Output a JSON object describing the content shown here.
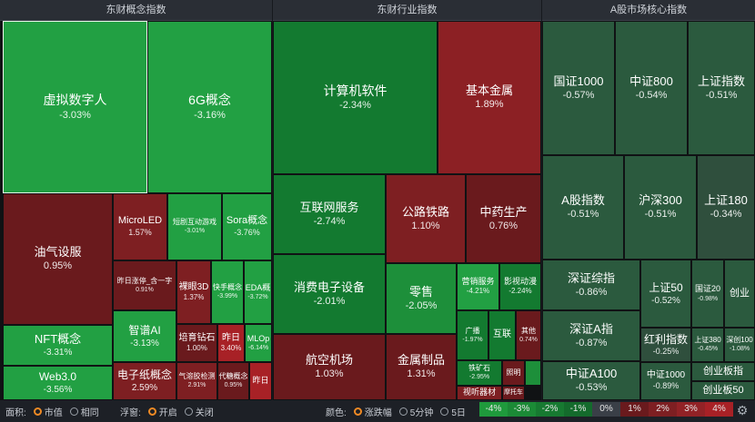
{
  "panels": [
    {
      "title": "东财概念指数"
    },
    {
      "title": "东财行业指数"
    },
    {
      "title": "A股市场核心指数"
    }
  ],
  "tiles": [
    {
      "name": "虚拟数字人",
      "value": "-3.03%"
    },
    {
      "name": "6G概念",
      "value": "-3.16%"
    },
    {
      "name": "油气设服",
      "value": "0.95%"
    },
    {
      "name": "MicroLED",
      "value": "1.57%"
    },
    {
      "name": "短剧互动游戏",
      "value": "-3.01%"
    },
    {
      "name": "Sora概念",
      "value": "-3.76%"
    },
    {
      "name": "昨日涨停_含一字",
      "value": "0.91%"
    },
    {
      "name": "裸眼3D",
      "value": "1.37%"
    },
    {
      "name": "快手概念",
      "value": "-3.99%"
    },
    {
      "name": "EDA概",
      "value": "-3.72%"
    },
    {
      "name": "智谱AI",
      "value": "-3.13%"
    },
    {
      "name": "培育钻石",
      "value": "1.00%"
    },
    {
      "name": "昨日",
      "value": "3.40%"
    },
    {
      "name": "MLOp",
      "value": "-6.14%"
    },
    {
      "name": "NFT概念",
      "value": "-3.31%"
    },
    {
      "name": "电子纸概念",
      "value": "2.59%"
    },
    {
      "name": "气溶胶检测",
      "value": "2.91%"
    },
    {
      "name": "代糖概念",
      "value": "0.95%"
    },
    {
      "name": "昨日",
      "value": ""
    },
    {
      "name": "Web3.0",
      "value": "-3.56%"
    },
    {
      "name": "计算机软件",
      "value": "-2.34%"
    },
    {
      "name": "基本金属",
      "value": "1.89%"
    },
    {
      "name": "互联网服务",
      "value": "-2.74%"
    },
    {
      "name": "公路铁路",
      "value": "1.10%"
    },
    {
      "name": "中药生产",
      "value": "0.76%"
    },
    {
      "name": "消费电子设备",
      "value": "-2.01%"
    },
    {
      "name": "零售",
      "value": "-2.05%"
    },
    {
      "name": "营销服务",
      "value": "-4.21%"
    },
    {
      "name": "影视动漫",
      "value": "-2.24%"
    },
    {
      "name": "广播",
      "value": "-1.97%"
    },
    {
      "name": "互联",
      "value": ""
    },
    {
      "name": "其他",
      "value": "0.74%"
    },
    {
      "name": "航空机场",
      "value": "1.03%"
    },
    {
      "name": "金属制品",
      "value": "1.31%"
    },
    {
      "name": "铁矿石",
      "value": "-2.95%"
    },
    {
      "name": "照明",
      "value": ""
    },
    {
      "name": "视听器材",
      "value": ""
    },
    {
      "name": "摩托车",
      "value": ""
    },
    {
      "name": "",
      "value": ""
    },
    {
      "name": "国证1000",
      "value": "-0.57%"
    },
    {
      "name": "中证800",
      "value": "-0.54%"
    },
    {
      "name": "上证指数",
      "value": "-0.51%"
    },
    {
      "name": "A股指数",
      "value": "-0.51%"
    },
    {
      "name": "沪深300",
      "value": "-0.51%"
    },
    {
      "name": "上证180",
      "value": "-0.34%"
    },
    {
      "name": "深证综指",
      "value": "-0.86%"
    },
    {
      "name": "上证50",
      "value": "-0.52%"
    },
    {
      "name": "国证20",
      "value": "-0.98%"
    },
    {
      "name": "创业",
      "value": ""
    },
    {
      "name": "深证A指",
      "value": "-0.87%"
    },
    {
      "name": "红利指数",
      "value": "-0.25%"
    },
    {
      "name": "上证380",
      "value": "-0.45%"
    },
    {
      "name": "深创100",
      "value": "-1.08%"
    },
    {
      "name": "中证A100",
      "value": "-0.53%"
    },
    {
      "name": "中证1000",
      "value": "-0.89%"
    },
    {
      "name": "创业板指",
      "value": ""
    },
    {
      "name": "创业板50",
      "value": ""
    }
  ],
  "footer": {
    "area_label": "面积:",
    "area_options": [
      "市值",
      "相同"
    ],
    "float_label": "浮窗:",
    "float_options": [
      "开启",
      "关闭"
    ],
    "color_label": "颜色:",
    "color_options": [
      "涨跌幅",
      "5分钟",
      "5日"
    ],
    "legend": [
      "-4%",
      "-3%",
      "-2%",
      "-1%",
      "0%",
      "1%",
      "2%",
      "3%",
      "4%"
    ],
    "legend_colors": [
      "#1f9a3c",
      "#1b8a36",
      "#177a31",
      "#146b2c",
      "#3a3f47",
      "#6a1a1d",
      "#7e1f22",
      "#922226",
      "#a82126"
    ],
    "settings_icon": "gear-icon"
  }
}
